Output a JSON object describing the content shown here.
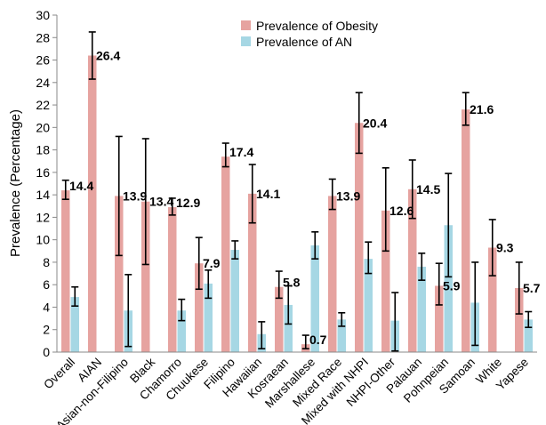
{
  "chart_data": {
    "type": "bar",
    "title": "",
    "xlabel": "",
    "ylabel": "Prevalence (Percentage)",
    "ylim": [
      0,
      30
    ],
    "ytick_step": 2,
    "legend_position": "top",
    "categories": [
      "Overall",
      "AIAN",
      "Asian-non-Filipino",
      "Black",
      "Chamorro",
      "Chuukese",
      "Filipino",
      "Hawaiian",
      "Kosraean",
      "Marshallese",
      "Mixed Race",
      "Mixed with NHPI",
      "NHPI-Other",
      "Palauan",
      "Pohnpeian",
      "Samoan",
      "White",
      "Yapese"
    ],
    "series": [
      {
        "name": "Prevalence of Obesity",
        "color": "#e6a3a0",
        "values": [
          14.4,
          26.4,
          13.9,
          13.4,
          12.9,
          7.9,
          17.4,
          14.1,
          5.8,
          0.7,
          13.9,
          20.4,
          12.6,
          14.5,
          5.9,
          21.6,
          9.3,
          5.7
        ],
        "error_low": [
          13.6,
          24.3,
          8.6,
          7.8,
          12.2,
          5.6,
          16.5,
          11.5,
          4.8,
          0.3,
          12.7,
          17.7,
          9.0,
          11.9,
          4.2,
          20.2,
          6.8,
          3.4
        ],
        "error_high": [
          15.3,
          28.5,
          19.2,
          19.0,
          13.7,
          10.2,
          18.6,
          16.7,
          7.2,
          1.5,
          15.4,
          23.1,
          16.4,
          17.1,
          7.9,
          23.1,
          11.8,
          8.0
        ]
      },
      {
        "name": "Prevalence of AN",
        "color": "#a6d7e4",
        "values": [
          4.9,
          0.0,
          3.7,
          0.0,
          3.7,
          6.1,
          9.1,
          1.6,
          4.2,
          9.5,
          2.9,
          8.3,
          2.8,
          7.6,
          11.3,
          4.4,
          0.0,
          2.9
        ],
        "error_low": [
          4.1,
          null,
          0.5,
          null,
          2.8,
          4.8,
          8.3,
          0.3,
          2.5,
          8.3,
          2.3,
          7.0,
          0.1,
          6.4,
          6.7,
          0.6,
          null,
          2.2
        ],
        "error_high": [
          5.8,
          null,
          6.9,
          null,
          4.7,
          7.3,
          9.9,
          2.7,
          5.9,
          10.7,
          3.5,
          9.8,
          5.3,
          8.8,
          15.9,
          8.0,
          null,
          3.6
        ]
      }
    ],
    "data_labels": [
      "14.4",
      "26.4",
      "13.9",
      "13.4",
      "12.9",
      "7.9",
      "17.4",
      "14.1",
      "5.8",
      "0.7",
      "13.9",
      "20.4",
      "12.6",
      "14.5",
      "5.9",
      "21.6",
      "9.3",
      "5.7"
    ]
  }
}
